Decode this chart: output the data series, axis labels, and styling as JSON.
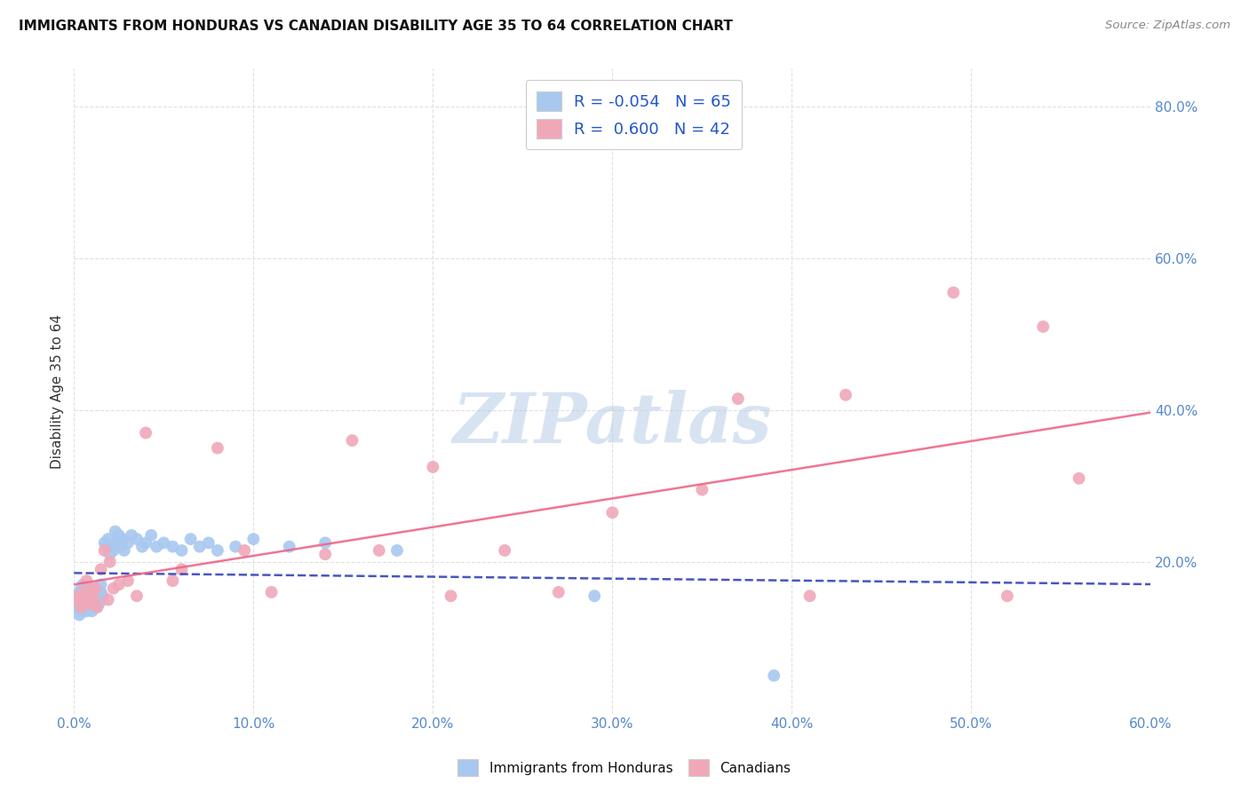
{
  "title": "IMMIGRANTS FROM HONDURAS VS CANADIAN DISABILITY AGE 35 TO 64 CORRELATION CHART",
  "source": "Source: ZipAtlas.com",
  "ylabel": "Disability Age 35 to 64",
  "xlim": [
    0.0,
    0.6
  ],
  "ylim": [
    0.0,
    0.85
  ],
  "xticks": [
    0.0,
    0.1,
    0.2,
    0.3,
    0.4,
    0.5,
    0.6
  ],
  "yticks": [
    0.0,
    0.2,
    0.4,
    0.6,
    0.8
  ],
  "xtick_labels": [
    "0.0%",
    "10.0%",
    "20.0%",
    "30.0%",
    "40.0%",
    "50.0%",
    "60.0%"
  ],
  "ytick_labels": [
    "",
    "20.0%",
    "40.0%",
    "60.0%",
    "80.0%"
  ],
  "background_color": "#ffffff",
  "grid_color": "#dddddd",
  "blue_color": "#a8c8f0",
  "pink_color": "#f0a8b8",
  "blue_line_color": "#3344bb",
  "pink_line_color": "#ee6688",
  "legend_R1": "-0.054",
  "legend_N1": "65",
  "legend_R2": "0.600",
  "legend_N2": "42",
  "watermark": "ZIPatlas",
  "blue_points_x": [
    0.001,
    0.002,
    0.002,
    0.003,
    0.003,
    0.003,
    0.004,
    0.004,
    0.004,
    0.005,
    0.005,
    0.005,
    0.006,
    0.006,
    0.007,
    0.007,
    0.007,
    0.008,
    0.008,
    0.009,
    0.009,
    0.01,
    0.01,
    0.011,
    0.011,
    0.012,
    0.012,
    0.013,
    0.014,
    0.015,
    0.015,
    0.016,
    0.017,
    0.018,
    0.019,
    0.02,
    0.021,
    0.022,
    0.023,
    0.024,
    0.025,
    0.026,
    0.027,
    0.028,
    0.03,
    0.032,
    0.035,
    0.038,
    0.04,
    0.043,
    0.046,
    0.05,
    0.055,
    0.06,
    0.065,
    0.07,
    0.075,
    0.08,
    0.09,
    0.1,
    0.12,
    0.14,
    0.18,
    0.29,
    0.39
  ],
  "blue_points_y": [
    0.15,
    0.14,
    0.155,
    0.13,
    0.145,
    0.16,
    0.135,
    0.15,
    0.165,
    0.14,
    0.155,
    0.17,
    0.145,
    0.16,
    0.135,
    0.15,
    0.165,
    0.14,
    0.155,
    0.145,
    0.16,
    0.135,
    0.155,
    0.15,
    0.165,
    0.14,
    0.16,
    0.155,
    0.145,
    0.16,
    0.17,
    0.155,
    0.225,
    0.22,
    0.23,
    0.21,
    0.22,
    0.215,
    0.24,
    0.225,
    0.235,
    0.22,
    0.23,
    0.215,
    0.225,
    0.235,
    0.23,
    0.22,
    0.225,
    0.235,
    0.22,
    0.225,
    0.22,
    0.215,
    0.23,
    0.22,
    0.225,
    0.215,
    0.22,
    0.23,
    0.22,
    0.225,
    0.215,
    0.155,
    0.05
  ],
  "pink_points_x": [
    0.001,
    0.003,
    0.004,
    0.005,
    0.006,
    0.007,
    0.008,
    0.009,
    0.01,
    0.011,
    0.012,
    0.013,
    0.015,
    0.017,
    0.019,
    0.02,
    0.022,
    0.025,
    0.03,
    0.035,
    0.04,
    0.055,
    0.06,
    0.08,
    0.095,
    0.11,
    0.14,
    0.155,
    0.17,
    0.2,
    0.21,
    0.24,
    0.27,
    0.3,
    0.35,
    0.37,
    0.41,
    0.43,
    0.49,
    0.52,
    0.54,
    0.56
  ],
  "pink_points_y": [
    0.15,
    0.155,
    0.14,
    0.16,
    0.145,
    0.175,
    0.155,
    0.145,
    0.16,
    0.15,
    0.165,
    0.14,
    0.19,
    0.215,
    0.15,
    0.2,
    0.165,
    0.17,
    0.175,
    0.155,
    0.37,
    0.175,
    0.19,
    0.35,
    0.215,
    0.16,
    0.21,
    0.36,
    0.215,
    0.325,
    0.155,
    0.215,
    0.16,
    0.265,
    0.295,
    0.415,
    0.155,
    0.42,
    0.555,
    0.155,
    0.51,
    0.31
  ]
}
